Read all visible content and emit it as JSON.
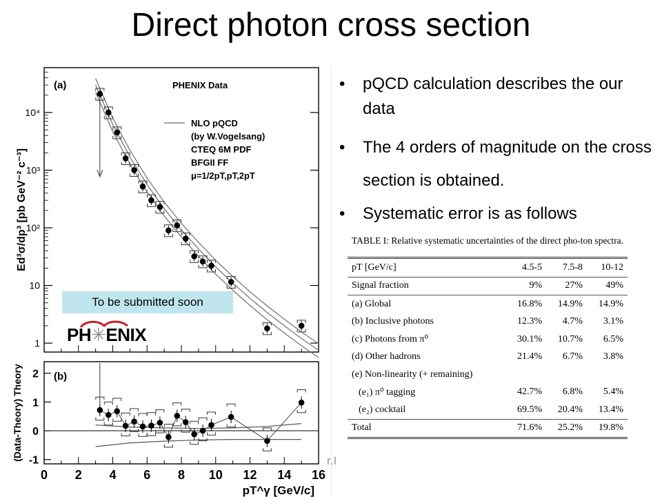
{
  "slide": {
    "title": "Direct photon cross section",
    "bullets": [
      "pQCD calculation describes the our data",
      "The 4 orders of magnitude on the cross section is obtained.",
      "Systematic error is as follows"
    ],
    "badge": "To be submitted soon",
    "logo_text": "PH ENIX",
    "footer_fragment": "r.I"
  },
  "chart_data": [
    {
      "type": "scatter",
      "panel_label": "(a)",
      "header": "PHENIX Data",
      "ylabel": "Ed³σ/dp³ [pb GeV⁻² c⁻³]",
      "yscale": "log",
      "ylim": [
        0.7,
        60000
      ],
      "xlim": [
        0,
        16
      ],
      "y_tick_labels": [
        "1",
        "10",
        "10²",
        "10³",
        "10⁴"
      ],
      "legend_entries": [
        "NLO pQCD",
        "(by W.Vogelsang)",
        "CTEQ 6M PDF",
        "BFGII FF",
        "μ=1/2pT,pT,2pT"
      ],
      "series": [
        {
          "name": "PHENIX Data",
          "x": [
            3.25,
            3.75,
            4.25,
            4.75,
            5.25,
            5.75,
            6.25,
            6.75,
            7.25,
            7.75,
            8.25,
            8.75,
            9.25,
            9.75,
            10.9,
            13.0,
            15.0
          ],
          "y": [
            21000,
            10000,
            4500,
            1600,
            1000,
            520,
            300,
            230,
            90,
            110,
            65,
            32,
            26,
            22,
            11.5,
            1.8,
            2.0
          ]
        }
      ],
      "curves": {
        "x": [
          3,
          4,
          5,
          6,
          7,
          8,
          9,
          10,
          11,
          12,
          13,
          14,
          15,
          16
        ],
        "central": [
          30000,
          6200,
          1700,
          560,
          215,
          92,
          43,
          21,
          11,
          6,
          3.4,
          2.0,
          1.2,
          0.75
        ],
        "upper_factor": 1.3,
        "lower_factor": 0.75
      }
    },
    {
      "type": "scatter",
      "panel_label": "(b)",
      "ylabel": "(Data-Theory) Theory",
      "xlabel": "pT^γ [GeV/c]",
      "xlim": [
        0,
        16
      ],
      "ylim": [
        -1.15,
        2.4
      ],
      "x_tick_labels": [
        "0",
        "2",
        "4",
        "6",
        "8",
        "10",
        "12",
        "14",
        "16"
      ],
      "y_tick_labels": [
        "-1",
        "0",
        "1",
        "2"
      ],
      "series": [
        {
          "name": "Data",
          "x": [
            3.25,
            3.75,
            4.25,
            4.75,
            5.25,
            5.75,
            6.25,
            6.75,
            7.25,
            7.75,
            8.25,
            8.75,
            9.25,
            9.75,
            10.9,
            13.0,
            15.0
          ],
          "y": [
            0.72,
            0.55,
            0.68,
            0.17,
            0.32,
            0.15,
            0.18,
            0.28,
            -0.22,
            0.52,
            0.3,
            -0.12,
            0.0,
            0.2,
            0.48,
            -0.35,
            0.98
          ]
        }
      ],
      "scale_band": {
        "x": [
          3,
          5,
          7,
          9,
          11,
          13,
          15
        ],
        "upper": [
          0.2,
          0.13,
          0.1,
          0.08,
          0.1,
          0.15,
          0.25
        ],
        "lower": [
          -0.55,
          -0.42,
          -0.36,
          -0.32,
          -0.3,
          -0.3,
          -0.3
        ]
      }
    },
    {
      "type": "table",
      "caption": "TABLE I: Relative systematic uncertainties of the direct pho-ton spectra.",
      "columns": [
        "pT [GeV/c]",
        "4.5-5",
        "7.5-8",
        "10-12"
      ],
      "rows": [
        [
          "Signal fraction",
          "9%",
          "27%",
          "49%"
        ],
        [
          "(a) Global",
          "16.8%",
          "14.9%",
          "14.9%"
        ],
        [
          "(b) Inclusive photons",
          "12.3%",
          "4.7%",
          "3.1%"
        ],
        [
          "(c) Photons from π⁰",
          "30.1%",
          "10.7%",
          "6.5%"
        ],
        [
          "(d) Other hadrons",
          "21.4%",
          "6.7%",
          "3.8%"
        ],
        [
          "(e) Non-linearity (+ remaining)",
          "",
          "",
          ""
        ],
        [
          "(e₁) π⁰ tagging",
          "42.7%",
          "6.8%",
          "5.4%"
        ],
        [
          "(e₂) cocktail",
          "69.5%",
          "20.4%",
          "13.4%"
        ],
        [
          "Total",
          "71.6%",
          "25.2%",
          "19.8%"
        ]
      ]
    }
  ]
}
